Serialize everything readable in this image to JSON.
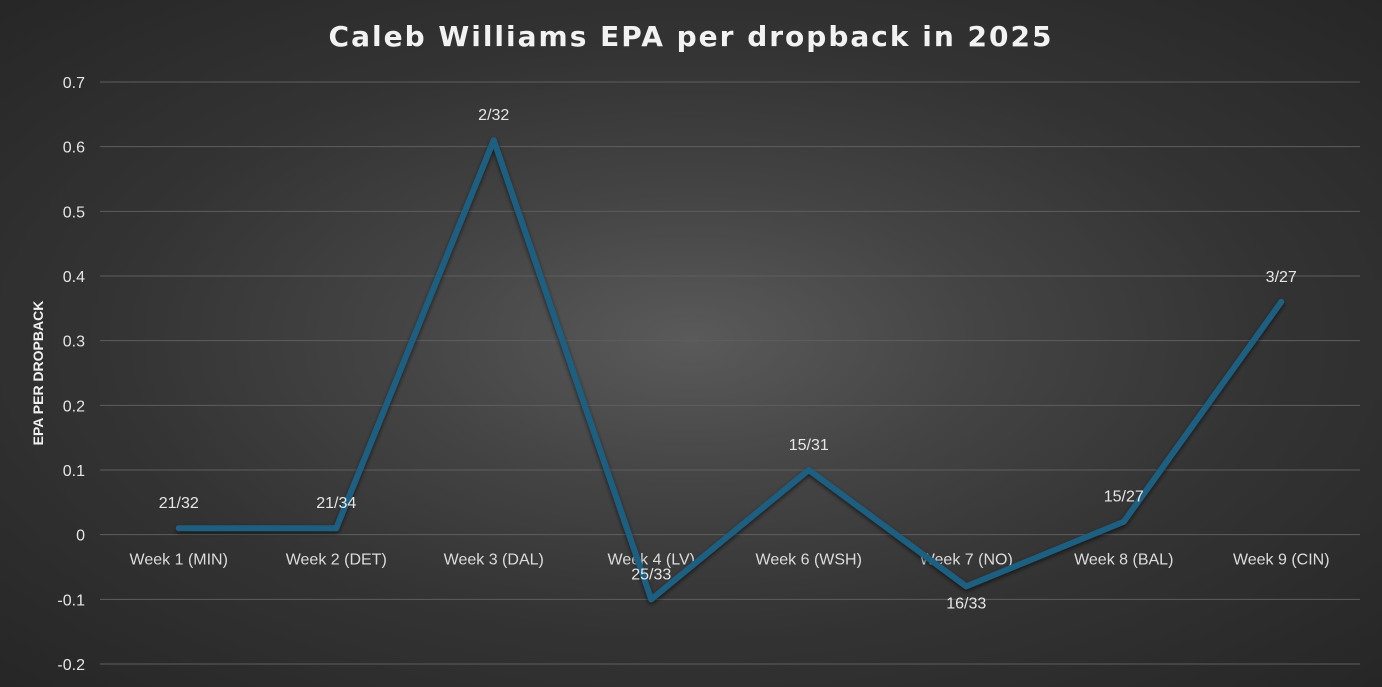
{
  "chart_data": {
    "type": "line",
    "title": "Caleb Williams EPA per dropback in 2025",
    "xlabel": "",
    "ylabel": "EPA PER DROPBACK",
    "ylim": [
      -0.2,
      0.7
    ],
    "yticks": [
      "0.7",
      "0.6",
      "0.5",
      "0.4",
      "0.3",
      "0.2",
      "0.1",
      "0",
      "-0.1",
      "-0.2"
    ],
    "ytick_values": [
      0.7,
      0.6,
      0.5,
      0.4,
      0.3,
      0.2,
      0.1,
      0,
      -0.1,
      -0.2
    ],
    "grid": true,
    "categories": [
      "Week 1 (MIN)",
      "Week 2 (DET)",
      "Week 3 (DAL)",
      "Week 4 (LV)",
      "Week 6 (WSH)",
      "Week 7 (NO)",
      "Week 8 (BAL)",
      "Week 9 (CIN)"
    ],
    "series": [
      {
        "values": [
          0.01,
          0.01,
          0.61,
          -0.1,
          0.1,
          -0.08,
          0.02,
          0.36
        ],
        "labels": [
          "21/32",
          "21/34",
          "2/32",
          "25/33",
          "15/31",
          "16/33",
          "15/27",
          "3/27"
        ],
        "label_positions": [
          "above",
          "above",
          "above",
          "above",
          "above",
          "below",
          "above",
          "above"
        ],
        "color": "#1f5f80"
      }
    ]
  }
}
